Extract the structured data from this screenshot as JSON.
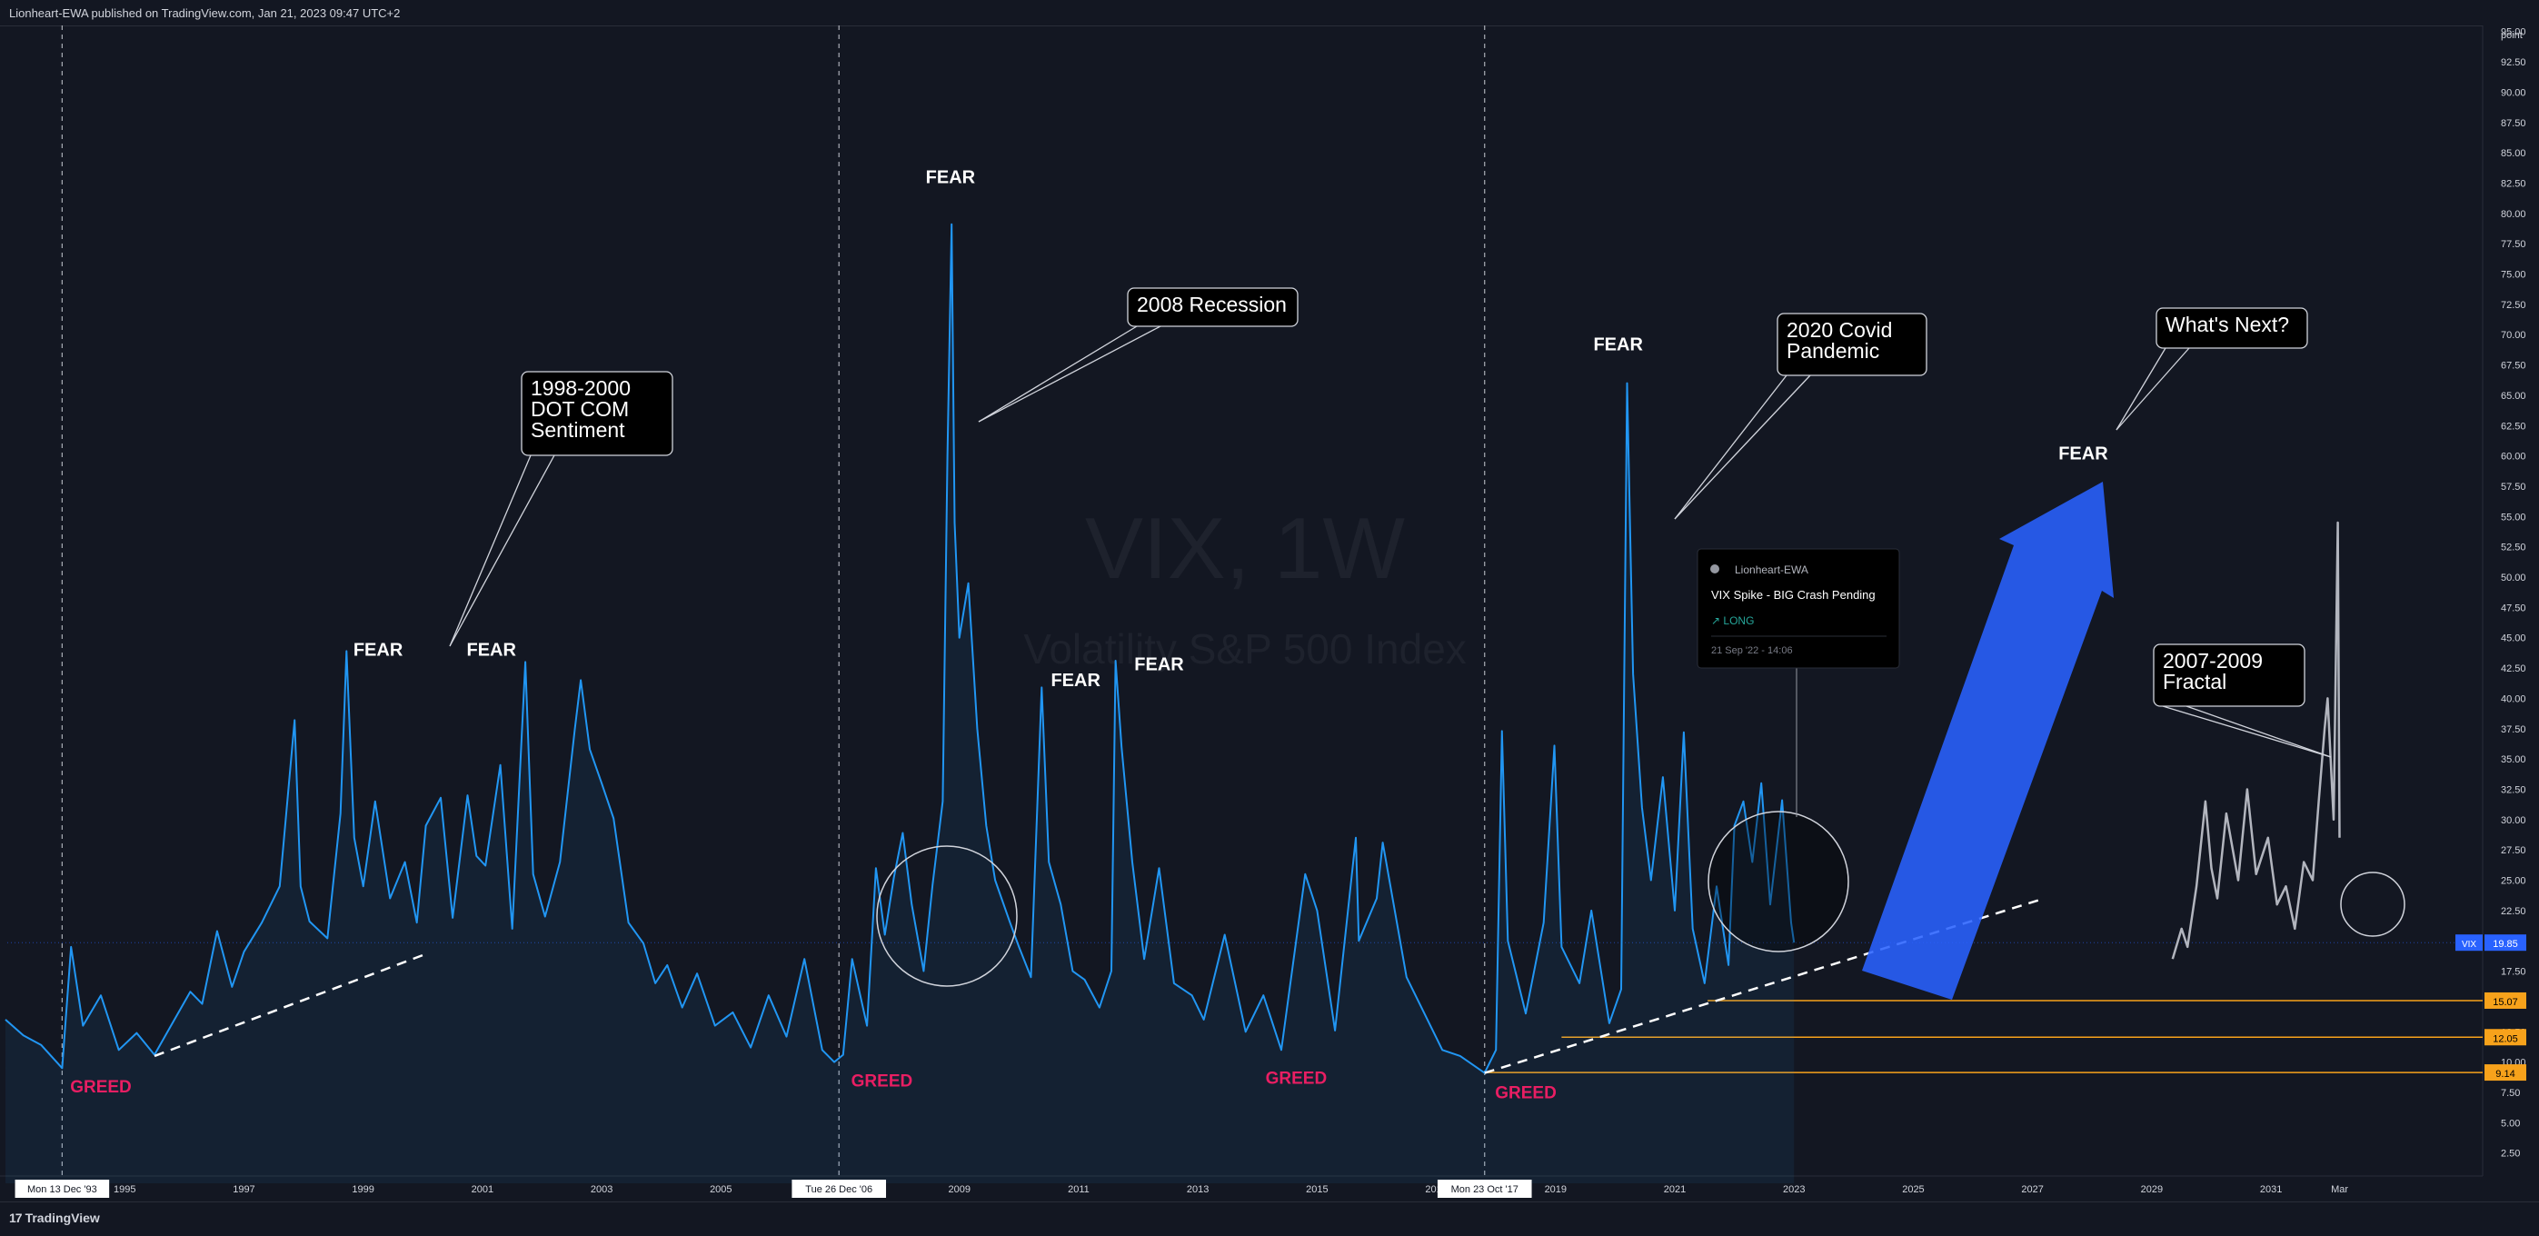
{
  "header": {
    "published": "Lionheart-EWA published on TradingView.com, Jan 21, 2023 09:47 UTC+2"
  },
  "footer": {
    "brand": "TradingView",
    "logo_mark": "17"
  },
  "chart_data": {
    "type": "line",
    "symbol_watermark": "VIX, 1W",
    "description_watermark": "Volatility S&P 500 Index",
    "axis_unit": "point",
    "y_ticks": [
      "2.50",
      "5.00",
      "7.50",
      "10.00",
      "12.50",
      "15.00",
      "17.50",
      "20.00",
      "22.50",
      "25.00",
      "27.50",
      "30.00",
      "32.50",
      "35.00",
      "37.50",
      "40.00",
      "42.50",
      "45.00",
      "47.50",
      "50.00",
      "52.50",
      "55.00",
      "57.50",
      "60.00",
      "62.50",
      "65.00",
      "67.50",
      "70.00",
      "72.50",
      "75.00",
      "77.50",
      "80.00",
      "82.50",
      "85.00",
      "87.50",
      "90.00",
      "92.50",
      "95.00"
    ],
    "ylim": [
      0,
      97
    ],
    "x_ticks": [
      {
        "label": "Mon 13 Dec '93",
        "t": 1993.95,
        "boxed": true
      },
      {
        "label": "1995",
        "t": 1995.0
      },
      {
        "label": "1997",
        "t": 1997.0
      },
      {
        "label": "1999",
        "t": 1999.0
      },
      {
        "label": "2001",
        "t": 2001.0
      },
      {
        "label": "2003",
        "t": 2003.0
      },
      {
        "label": "2005",
        "t": 2005.0
      },
      {
        "label": "Tue 26 Dec '06",
        "t": 2006.98,
        "boxed": true
      },
      {
        "label": "2009",
        "t": 2009.0
      },
      {
        "label": "2011",
        "t": 2011.0
      },
      {
        "label": "2013",
        "t": 2013.0
      },
      {
        "label": "2015",
        "t": 2015.0
      },
      {
        "label": "2017",
        "t": 2017.0
      },
      {
        "label": "Mon 23 Oct '17",
        "t": 2017.81,
        "boxed": true
      },
      {
        "label": "2019",
        "t": 2019.0
      },
      {
        "label": "2021",
        "t": 2021.0
      },
      {
        "label": "2023",
        "t": 2023.0
      },
      {
        "label": "2025",
        "t": 2025.0
      },
      {
        "label": "2027",
        "t": 2027.0
      },
      {
        "label": "2029",
        "t": 2029.0
      },
      {
        "label": "2031",
        "t": 2031.0
      },
      {
        "label": "Mar",
        "t": 2032.15
      }
    ],
    "vertical_markers": [
      1993.95,
      2006.98,
      2017.81
    ],
    "series": [
      {
        "name": "VIX",
        "color": "#2196f3",
        "values": [
          [
            1993.0,
            13.5
          ],
          [
            1993.3,
            12.2
          ],
          [
            1993.6,
            11.4
          ],
          [
            1993.95,
            9.5
          ],
          [
            1994.1,
            19.5
          ],
          [
            1994.3,
            13
          ],
          [
            1994.6,
            15.5
          ],
          [
            1994.9,
            11
          ],
          [
            1995.2,
            12.4
          ],
          [
            1995.5,
            10.6
          ],
          [
            1995.8,
            13.2
          ],
          [
            1996.1,
            15.8
          ],
          [
            1996.3,
            14.8
          ],
          [
            1996.55,
            20.8
          ],
          [
            1996.8,
            16.2
          ],
          [
            1997.0,
            19.1
          ],
          [
            1997.3,
            21.5
          ],
          [
            1997.6,
            24.5
          ],
          [
            1997.85,
            38.2
          ],
          [
            1997.95,
            24.5
          ],
          [
            1998.1,
            21.6
          ],
          [
            1998.4,
            20.2
          ],
          [
            1998.62,
            30.5
          ],
          [
            1998.72,
            43.9
          ],
          [
            1998.85,
            28.5
          ],
          [
            1999.0,
            24.5
          ],
          [
            1999.2,
            31.5
          ],
          [
            1999.45,
            23.5
          ],
          [
            1999.7,
            26.5
          ],
          [
            1999.9,
            21.5
          ],
          [
            2000.05,
            29.5
          ],
          [
            2000.3,
            31.8
          ],
          [
            2000.5,
            21.9
          ],
          [
            2000.75,
            32.0
          ],
          [
            2000.9,
            27.0
          ],
          [
            2001.05,
            26.2
          ],
          [
            2001.3,
            34.5
          ],
          [
            2001.5,
            21.0
          ],
          [
            2001.72,
            43.0
          ],
          [
            2001.85,
            25.5
          ],
          [
            2002.05,
            22.0
          ],
          [
            2002.3,
            26.5
          ],
          [
            2002.55,
            37.5
          ],
          [
            2002.65,
            41.5
          ],
          [
            2002.8,
            35.8
          ],
          [
            2003.0,
            33.0
          ],
          [
            2003.2,
            30.1
          ],
          [
            2003.45,
            21.5
          ],
          [
            2003.7,
            19.8
          ],
          [
            2003.9,
            16.5
          ],
          [
            2004.1,
            18.0
          ],
          [
            2004.35,
            14.5
          ],
          [
            2004.6,
            17.3
          ],
          [
            2004.9,
            13.0
          ],
          [
            2005.2,
            14.1
          ],
          [
            2005.5,
            11.2
          ],
          [
            2005.8,
            15.5
          ],
          [
            2006.1,
            12.1
          ],
          [
            2006.4,
            18.5
          ],
          [
            2006.7,
            11.0
          ],
          [
            2006.9,
            10.0
          ],
          [
            2007.05,
            10.6
          ],
          [
            2007.2,
            18.5
          ],
          [
            2007.45,
            13.0
          ],
          [
            2007.6,
            26.0
          ],
          [
            2007.75,
            20.5
          ],
          [
            2007.9,
            25.2
          ],
          [
            2008.05,
            28.9
          ],
          [
            2008.2,
            23.0
          ],
          [
            2008.4,
            17.5
          ],
          [
            2008.55,
            24.6
          ],
          [
            2008.72,
            31.5
          ],
          [
            2008.8,
            60.0
          ],
          [
            2008.87,
            79.1
          ],
          [
            2008.92,
            54.5
          ],
          [
            2009.0,
            45.0
          ],
          [
            2009.15,
            49.5
          ],
          [
            2009.3,
            37.5
          ],
          [
            2009.45,
            29.5
          ],
          [
            2009.6,
            25.0
          ],
          [
            2009.85,
            21.5
          ],
          [
            2010.0,
            19.5
          ],
          [
            2010.2,
            17.0
          ],
          [
            2010.38,
            40.9
          ],
          [
            2010.5,
            26.5
          ],
          [
            2010.7,
            23.0
          ],
          [
            2010.9,
            17.5
          ],
          [
            2011.1,
            16.8
          ],
          [
            2011.35,
            14.5
          ],
          [
            2011.55,
            17.5
          ],
          [
            2011.62,
            43.1
          ],
          [
            2011.72,
            36.0
          ],
          [
            2011.9,
            26.5
          ],
          [
            2012.1,
            18.5
          ],
          [
            2012.35,
            26.0
          ],
          [
            2012.6,
            16.5
          ],
          [
            2012.9,
            15.5
          ],
          [
            2013.1,
            13.5
          ],
          [
            2013.45,
            20.5
          ],
          [
            2013.8,
            12.5
          ],
          [
            2014.1,
            15.5
          ],
          [
            2014.4,
            11.0
          ],
          [
            2014.8,
            25.5
          ],
          [
            2015.0,
            22.5
          ],
          [
            2015.3,
            12.6
          ],
          [
            2015.65,
            28.5
          ],
          [
            2015.7,
            20.0
          ],
          [
            2016.0,
            23.5
          ],
          [
            2016.1,
            28.1
          ],
          [
            2016.5,
            17.0
          ],
          [
            2016.85,
            13.5
          ],
          [
            2017.1,
            11.0
          ],
          [
            2017.4,
            10.5
          ],
          [
            2017.81,
            9.1
          ],
          [
            2018.0,
            11.0
          ],
          [
            2018.1,
            37.3
          ],
          [
            2018.2,
            20.0
          ],
          [
            2018.5,
            14.0
          ],
          [
            2018.8,
            21.5
          ],
          [
            2018.98,
            36.1
          ],
          [
            2019.1,
            19.5
          ],
          [
            2019.4,
            16.5
          ],
          [
            2019.6,
            22.5
          ],
          [
            2019.9,
            13.2
          ],
          [
            2020.1,
            16.0
          ],
          [
            2020.2,
            66.0
          ],
          [
            2020.3,
            42.0
          ],
          [
            2020.45,
            31.0
          ],
          [
            2020.6,
            25.0
          ],
          [
            2020.8,
            33.5
          ],
          [
            2021.0,
            22.5
          ],
          [
            2021.15,
            37.2
          ],
          [
            2021.3,
            21.0
          ],
          [
            2021.5,
            16.5
          ],
          [
            2021.7,
            24.5
          ],
          [
            2021.9,
            18.0
          ],
          [
            2022.0,
            29.5
          ],
          [
            2022.15,
            31.5
          ],
          [
            2022.3,
            26.5
          ],
          [
            2022.45,
            33.0
          ],
          [
            2022.6,
            23.0
          ],
          [
            2022.8,
            31.6
          ],
          [
            2022.95,
            21.5
          ],
          [
            2023.0,
            19.85
          ]
        ]
      },
      {
        "name": "2007-2009 Fractal",
        "color": "#b2b5be",
        "values": [
          [
            2029.35,
            18.5
          ],
          [
            2029.5,
            21.0
          ],
          [
            2029.6,
            19.5
          ],
          [
            2029.75,
            24.5
          ],
          [
            2029.9,
            31.5
          ],
          [
            2030.0,
            26.0
          ],
          [
            2030.1,
            23.5
          ],
          [
            2030.25,
            30.5
          ],
          [
            2030.45,
            25.0
          ],
          [
            2030.6,
            32.5
          ],
          [
            2030.75,
            25.5
          ],
          [
            2030.95,
            28.5
          ],
          [
            2031.1,
            23.0
          ],
          [
            2031.25,
            24.5
          ],
          [
            2031.4,
            21.0
          ],
          [
            2031.55,
            26.5
          ],
          [
            2031.7,
            25.0
          ],
          [
            2031.8,
            31.5
          ],
          [
            2031.9,
            37.5
          ],
          [
            2031.95,
            40.0
          ],
          [
            2032.05,
            30.0
          ],
          [
            2032.12,
            54.5
          ],
          [
            2032.15,
            28.5
          ]
        ]
      }
    ],
    "last_value": {
      "label": "VIX",
      "value": "19.85"
    },
    "horizontal_levels": [
      {
        "value": 15.07,
        "label": "15.07",
        "from": 2021.55
      },
      {
        "value": 12.05,
        "label": "12.05",
        "from": 2019.1
      },
      {
        "value": 9.14,
        "label": "9.14",
        "from": 2017.81
      }
    ],
    "trendlines": [
      {
        "from": [
          1995.5,
          10.5
        ],
        "to": [
          2000.1,
          19.0
        ]
      },
      {
        "from": [
          2017.81,
          9.1
        ],
        "to": [
          2027.2,
          23.5
        ]
      }
    ],
    "annotations": {
      "fear": [
        {
          "text": "FEAR",
          "t": 1999.25,
          "v": 43.5
        },
        {
          "text": "FEAR",
          "t": 2001.15,
          "v": 43.5
        },
        {
          "text": "FEAR",
          "t": 2008.85,
          "v": 82.5
        },
        {
          "text": "FEAR",
          "t": 2010.95,
          "v": 41.0
        },
        {
          "text": "FEAR",
          "t": 2012.35,
          "v": 42.3
        },
        {
          "text": "FEAR",
          "t": 2020.05,
          "v": 68.7
        },
        {
          "text": "FEAR",
          "t": 2027.85,
          "v": 59.7
        }
      ],
      "greed": [
        {
          "text": "GREED",
          "t": 1994.6,
          "v": 7.5
        },
        {
          "text": "GREED",
          "t": 2007.7,
          "v": 8.0
        },
        {
          "text": "GREED",
          "t": 2014.65,
          "v": 8.2
        },
        {
          "text": "GREED",
          "t": 2018.5,
          "v": 7.0
        }
      ],
      "callouts": [
        {
          "lines": [
            "1998-2000",
            "DOT COM",
            "Sentiment"
          ]
        },
        {
          "lines": [
            "2008 Recession"
          ]
        },
        {
          "lines": [
            "2020 Covid",
            "Pandemic"
          ]
        },
        {
          "lines": [
            "What's Next?"
          ]
        },
        {
          "lines": [
            "2007-2009",
            "Fractal"
          ]
        }
      ],
      "idea_card": {
        "author": "Lionheart-EWA",
        "title": "VIX Spike - BIG Crash Pending",
        "tag": "↗ LONG",
        "date": "21 Sep '22 - 14:06"
      }
    }
  }
}
